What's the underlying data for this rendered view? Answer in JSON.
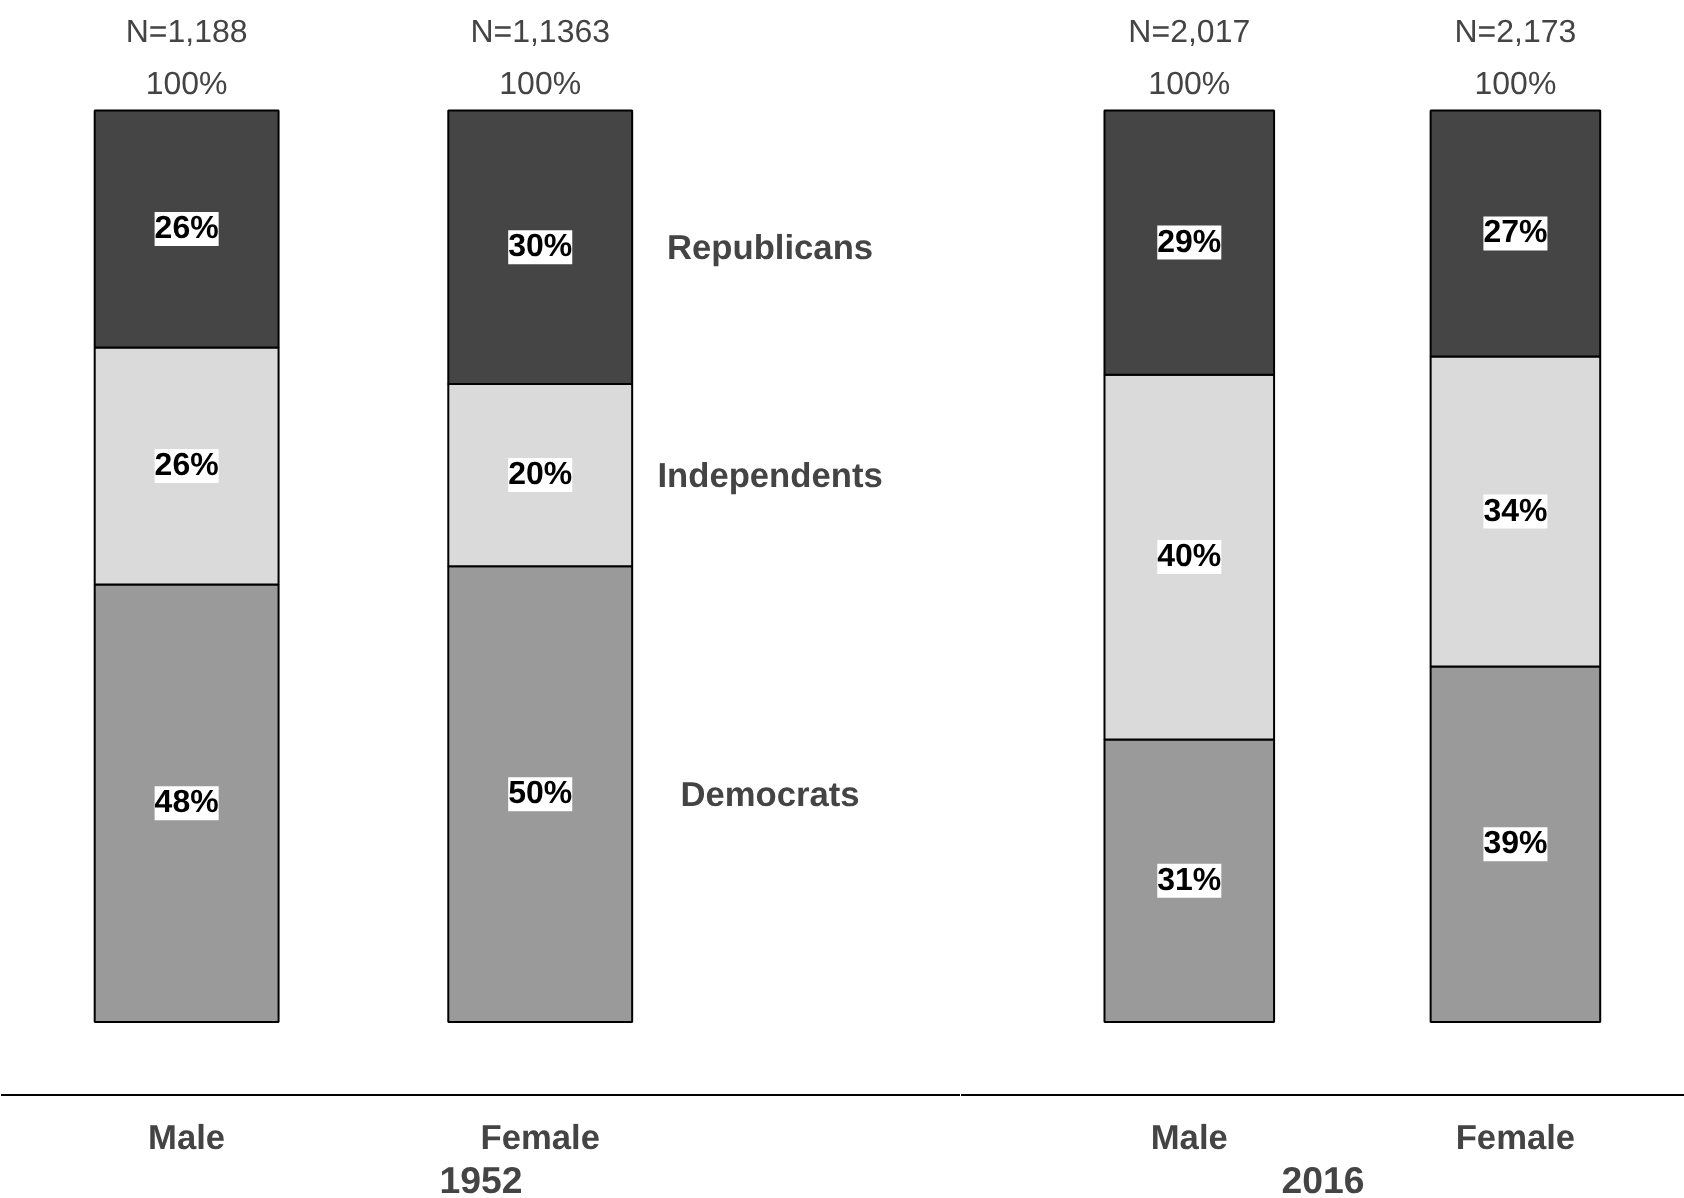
{
  "chart_data": [
    {
      "type": "bar",
      "stacked": true,
      "xlabel": "1952",
      "categories": [
        "Male",
        "Female"
      ],
      "tick_labels": "x",
      "series": [
        {
          "name": "Democrats",
          "color": "#9a9a9a",
          "values": [
            48,
            50
          ],
          "value_labels": [
            "48%",
            "50%"
          ]
        },
        {
          "name": "Independents",
          "color": "#dadada",
          "values": [
            26,
            20
          ],
          "value_labels": [
            "26%",
            "20%"
          ]
        },
        {
          "name": "Republicans",
          "color": "#454545",
          "values": [
            26,
            30
          ],
          "value_labels": [
            "26%",
            "30%"
          ]
        }
      ],
      "totals": [
        "100%",
        "100%"
      ],
      "annotations": [
        {
          "text": "N=1,188",
          "x": "Male",
          "y": 100
        },
        {
          "text": "N=1,1363",
          "x": "Female",
          "y": 100
        }
      ]
    },
    {
      "type": "bar",
      "stacked": true,
      "xlabel": "2016",
      "categories": [
        "Male",
        "Female"
      ],
      "tick_labels": "x",
      "series": [
        {
          "color": "#9a9a9a",
          "values": [
            31,
            39
          ],
          "value_labels": [
            "31%",
            "39%"
          ]
        },
        {
          "color": "#dadada",
          "values": [
            40,
            34
          ],
          "value_labels": [
            "40%",
            "34%"
          ]
        },
        {
          "color": "#454545",
          "values": [
            29,
            27
          ],
          "value_labels": [
            "29%",
            "27%"
          ]
        }
      ],
      "totals": [
        "100%",
        "100%"
      ],
      "annotations": [
        {
          "text": "N=2,017",
          "x": "Male",
          "y": 100
        },
        {
          "text": "N=2,173",
          "x": "Female",
          "y": 100
        }
      ]
    }
  ]
}
